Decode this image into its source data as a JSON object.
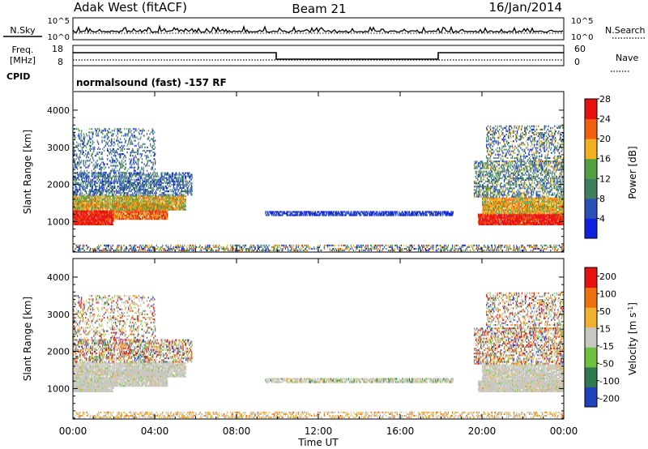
{
  "header": {
    "station": "Adak West (fitACF)",
    "beam": "Beam 21",
    "date": "16/Jan/2014"
  },
  "side_labels": {
    "nsky": "N.Sky",
    "nsearch": "N.Search",
    "freq": "Freq.",
    "freq_unit": "[MHz]",
    "nave": "Nave",
    "cpid": "CPID",
    "nsky_tick_hi": "10^5",
    "nsky_tick_lo": "10^0",
    "freq_tick_hi": "18",
    "freq_tick_lo": "8",
    "nave_tick_hi": "60",
    "nave_tick_lo": "0"
  },
  "cpid_text": "normalsound (fast) -157 RF",
  "chart_data": [
    {
      "type": "heatmap",
      "title": "Power",
      "ylabel": "Slant Range [km]",
      "xlabel": "Time UT",
      "ylim": [
        180,
        4500
      ],
      "yticks": [
        "1000",
        "2000",
        "3000",
        "4000"
      ],
      "xticks": [
        "00:00",
        "04:00",
        "08:00",
        "12:00",
        "16:00",
        "20:00",
        "00:00"
      ],
      "colorbar": {
        "label": "Power [dB]",
        "ticks": [
          "4",
          "8",
          "12",
          "16",
          "20",
          "24",
          "28"
        ],
        "colors": [
          "#1020e0",
          "#2a4fb8",
          "#3f7f60",
          "#52a040",
          "#f0b020",
          "#f06010",
          "#e81010"
        ]
      }
    },
    {
      "type": "heatmap",
      "title": "Velocity",
      "ylabel": "Slant Range [km]",
      "xlabel": "Time UT",
      "ylim": [
        180,
        4500
      ],
      "yticks": [
        "1000",
        "2000",
        "3000",
        "4000"
      ],
      "xticks": [
        "00:00",
        "04:00",
        "08:00",
        "12:00",
        "16:00",
        "20:00",
        "00:00"
      ],
      "colorbar": {
        "label": "Velocity [m s-1]",
        "ticks": [
          "200",
          "100",
          "50",
          "15",
          "-15",
          "-50",
          "-100",
          "-200"
        ],
        "colors": [
          "#2040c0",
          "#2f7a50",
          "#70c040",
          "#c8c8c0",
          "#f0b030",
          "#f07010",
          "#e81010"
        ]
      }
    }
  ],
  "colors": {
    "ground_scatter": "#c8c8c0"
  }
}
